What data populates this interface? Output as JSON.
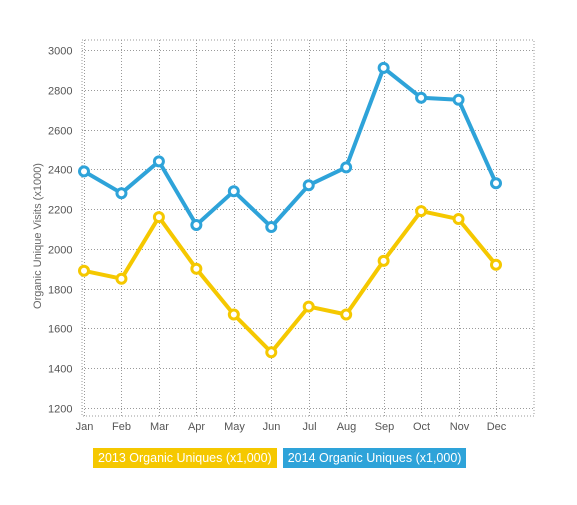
{
  "chart_data": {
    "type": "line",
    "title": "",
    "xlabel": "",
    "ylabel": "Organic Unique Visits (x1000)",
    "categories": [
      "Jan",
      "Feb",
      "Mar",
      "Apr",
      "May",
      "Jun",
      "Jul",
      "Aug",
      "Sep",
      "Oct",
      "Nov",
      "Dec"
    ],
    "ylim": [
      1150,
      3050
    ],
    "yticks": [
      1200,
      1400,
      1600,
      1800,
      2000,
      2200,
      2400,
      2600,
      2800,
      3000
    ],
    "grid": true,
    "legend_position": "bottom",
    "series": [
      {
        "name": "2013 Organic Uniques (x1,000)",
        "color": "#f5c800",
        "values": [
          1890,
          1850,
          2160,
          1900,
          1670,
          1480,
          1710,
          1670,
          1940,
          2190,
          2150,
          1920
        ]
      },
      {
        "name": "2014 Organic Uniques (x1,000)",
        "color": "#2ea3d9",
        "values": [
          2390,
          2280,
          2440,
          2120,
          2290,
          2110,
          2320,
          2410,
          2910,
          2760,
          2750,
          2330
        ]
      }
    ]
  }
}
